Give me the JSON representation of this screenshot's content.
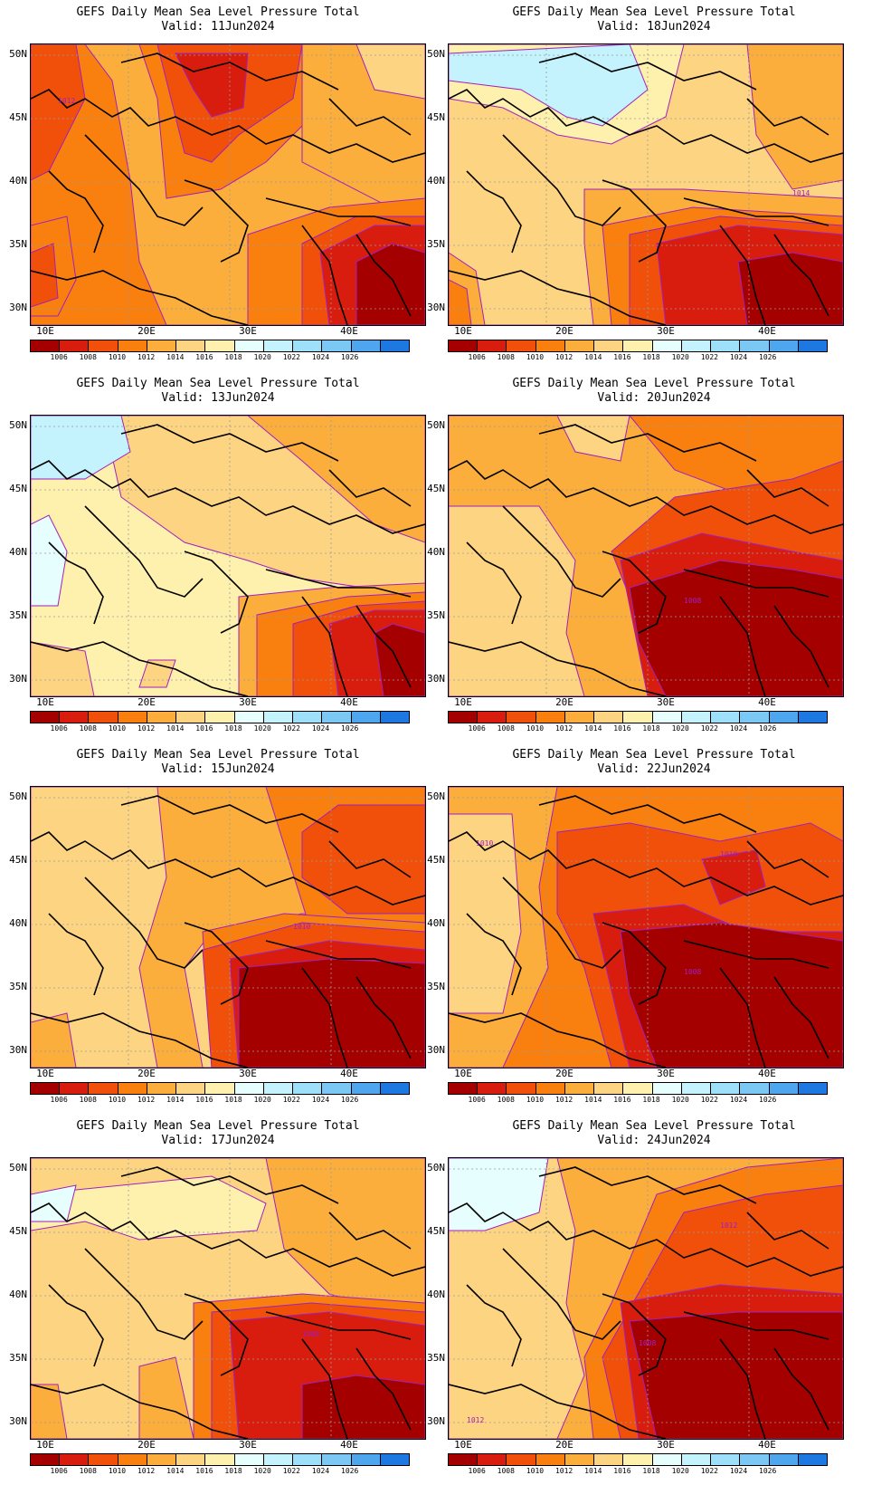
{
  "panels": [
    {
      "title": "GEFS Daily Mean Sea Level Pressure Total",
      "valid": "Valid: 11Jun2024",
      "labels": [
        "1012"
      ]
    },
    {
      "title": "GEFS Daily Mean Sea Level Pressure Total",
      "valid": "Valid: 18Jun2024",
      "labels": [
        "1014"
      ]
    },
    {
      "title": "GEFS Daily Mean Sea Level Pressure Total",
      "valid": "Valid: 13Jun2024",
      "labels": []
    },
    {
      "title": "GEFS Daily Mean Sea Level Pressure Total",
      "valid": "Valid: 20Jun2024",
      "labels": [
        "1008"
      ]
    },
    {
      "title": "GEFS Daily Mean Sea Level Pressure Total",
      "valid": "Valid: 15Jun2024",
      "labels": [
        "1010"
      ]
    },
    {
      "title": "GEFS Daily Mean Sea Level Pressure Total",
      "valid": "Valid: 22Jun2024",
      "labels": [
        "1010",
        "1010",
        "1008"
      ]
    },
    {
      "title": "GEFS Daily Mean Sea Level Pressure Total",
      "valid": "Valid: 17Jun2024",
      "labels": [
        "1008"
      ]
    },
    {
      "title": "GEFS Daily Mean Sea Level Pressure Total",
      "valid": "Valid: 24Jun2024",
      "labels": [
        "1012",
        "1008",
        "1012"
      ]
    }
  ],
  "y_ticks": [
    "50N",
    "45N",
    "40N",
    "35N",
    "30N"
  ],
  "x_ticks": [
    "10E",
    "20E",
    "30E",
    "40E"
  ],
  "colorbar": {
    "labels": [
      "1006",
      "1008",
      "1010",
      "1012",
      "1014",
      "1016",
      "1018",
      "1020",
      "1022",
      "1024",
      "1026"
    ],
    "colors": [
      "#a50000",
      "#d81c0e",
      "#f0500a",
      "#f9800f",
      "#fbae3c",
      "#fdd582",
      "#fef0ad",
      "#e6fffe",
      "#c4f2fd",
      "#9edff9",
      "#7cc8f5",
      "#4ea6ee",
      "#1e78e1"
    ]
  },
  "map_colors": {
    "c1006": "#a50000",
    "c1008": "#d81c0e",
    "c1010": "#f0500a",
    "c1012": "#f9800f",
    "c1014": "#fbae3c",
    "c1016": "#fdd582",
    "c1018": "#fef0ad",
    "c1020": "#e6fffe",
    "c1022": "#c4f2fd",
    "contour": "#a020c0",
    "border": "#000000",
    "grid": "#9a9a9a"
  }
}
